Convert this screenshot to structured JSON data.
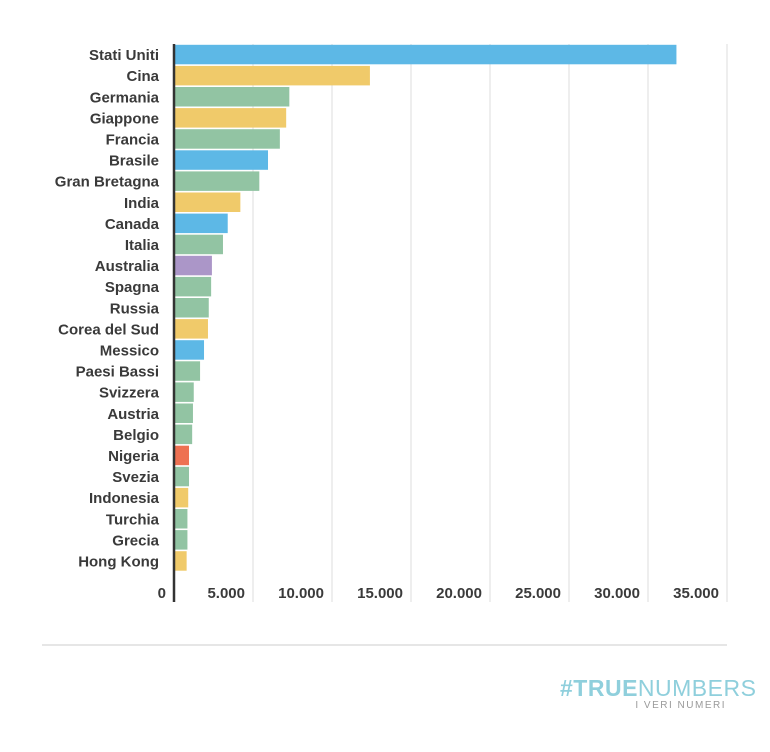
{
  "chart_data": {
    "type": "bar",
    "orientation": "horizontal",
    "categories": [
      "Stati Uniti",
      "Cina",
      "Germania",
      "Giappone",
      "Francia",
      "Brasile",
      "Gran Bretagna",
      "India",
      "Canada",
      "Italia",
      "Australia",
      "Spagna",
      "Russia",
      "Corea del Sud",
      "Messico",
      "Paesi Bassi",
      "Svizzera",
      "Austria",
      "Belgio",
      "Nigeria",
      "Svezia",
      "Indonesia",
      "Turchia",
      "Grecia",
      "Hong Kong"
    ],
    "values": [
      31800,
      12400,
      7300,
      7100,
      6700,
      5950,
      5400,
      4200,
      3400,
      3100,
      2400,
      2350,
      2200,
      2150,
      1900,
      1650,
      1250,
      1200,
      1150,
      950,
      950,
      900,
      850,
      850,
      800
    ],
    "colors": [
      "#5db8e6",
      "#f0ca6a",
      "#92c4a3",
      "#f0ca6a",
      "#92c4a3",
      "#5db8e6",
      "#92c4a3",
      "#f0ca6a",
      "#5db8e6",
      "#92c4a3",
      "#ab96c8",
      "#92c4a3",
      "#92c4a3",
      "#f0ca6a",
      "#5db8e6",
      "#92c4a3",
      "#92c4a3",
      "#92c4a3",
      "#92c4a3",
      "#ee7152",
      "#92c4a3",
      "#f0ca6a",
      "#92c4a3",
      "#92c4a3",
      "#f0ca6a"
    ],
    "xticks": [
      0,
      5000,
      10000,
      15000,
      20000,
      25000,
      30000,
      35000
    ],
    "xtick_labels": [
      "0",
      "5.000",
      "10.000",
      "15.000",
      "20.000",
      "25.000",
      "30.000",
      "35.000"
    ],
    "xlim": [
      0,
      35000
    ],
    "grid": true,
    "title": "",
    "xlabel": "",
    "ylabel": ""
  },
  "logo": {
    "hash": "#",
    "bold": "TRUE",
    "light": "NUMBERS",
    "tagline": "I VERI NUMERI"
  }
}
